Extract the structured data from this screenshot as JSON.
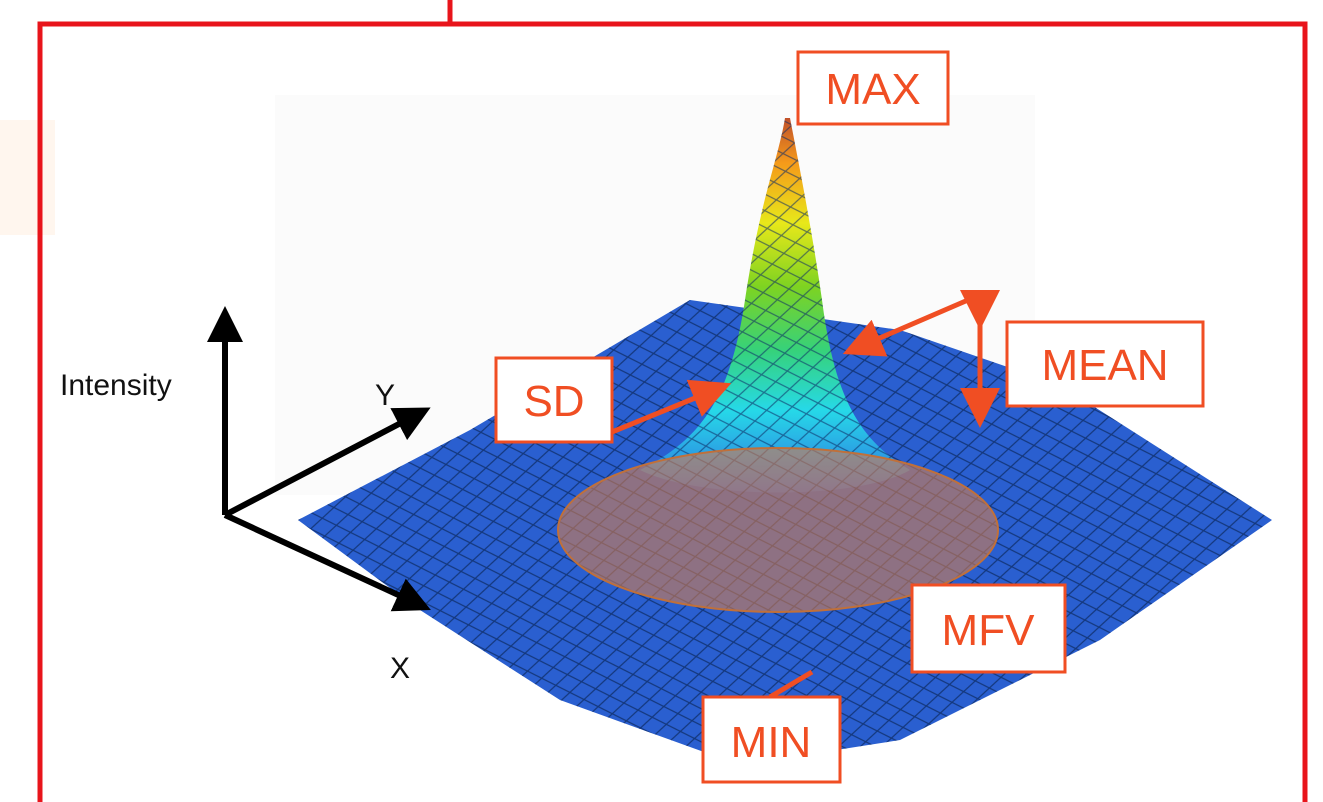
{
  "axes": {
    "intensity": "Intensity",
    "y": "Y",
    "x": "X"
  },
  "callouts": {
    "max": "MAX",
    "mean": "MEAN",
    "sd": "SD",
    "mfv": "MFV",
    "min": "MIN"
  }
}
